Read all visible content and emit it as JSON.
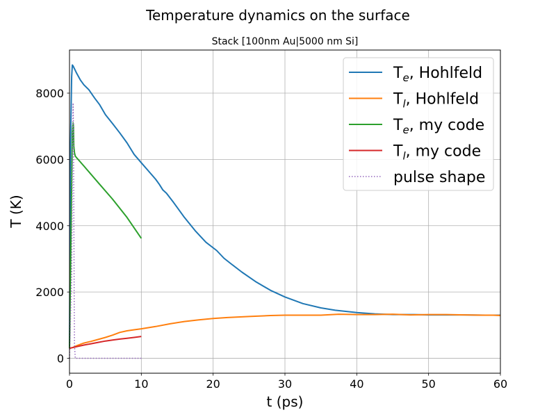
{
  "chart_data": {
    "type": "line",
    "title": "Temperature dynamics on the surface",
    "subtitle": "Stack [100nm Au|5000 nm Si]",
    "xlabel": "t (ps)",
    "ylabel": "T (K)",
    "xlim": [
      0,
      60
    ],
    "ylim": [
      -450,
      9300
    ],
    "xticks": [
      0,
      10,
      20,
      30,
      40,
      50,
      60
    ],
    "yticks": [
      0,
      2000,
      4000,
      6000,
      8000
    ],
    "grid": true,
    "legend_position": "top-right",
    "series": [
      {
        "name": "T_e, Hohlfeld",
        "label_main": "T",
        "label_sub": "e",
        "label_rest": ", Hohlfeld",
        "color": "#1f77b4",
        "style": "solid",
        "x": [
          0.0,
          0.15,
          0.3,
          0.4,
          0.5,
          1.0,
          1.5,
          2.0,
          2.7,
          3.5,
          4.2,
          5.0,
          6.0,
          7.0,
          8.0,
          9.0,
          10.0,
          11.0,
          12.0,
          12.5,
          13.0,
          13.5,
          14.5,
          16.0,
          17.5,
          19.0,
          20.5,
          21.5,
          22.5,
          24.0,
          26.0,
          28.0,
          30.0,
          32.5,
          35.0,
          37.0,
          40.0,
          42.5,
          45.0,
          48.0,
          50.0,
          52.0,
          55.0,
          58.0,
          60.0
        ],
        "y": [
          300,
          6500,
          8500,
          8850,
          8820,
          8600,
          8400,
          8250,
          8100,
          7850,
          7650,
          7350,
          7080,
          6800,
          6500,
          6150,
          5900,
          5650,
          5400,
          5250,
          5080,
          4980,
          4700,
          4250,
          3850,
          3500,
          3250,
          3020,
          2850,
          2600,
          2300,
          2050,
          1850,
          1650,
          1520,
          1450,
          1380,
          1340,
          1320,
          1320,
          1310,
          1310,
          1310,
          1300,
          1300
        ]
      },
      {
        "name": "T_l, Hohlfeld",
        "label_main": "T",
        "label_sub": "l",
        "label_rest": ", Hohlfeld",
        "color": "#ff7f0e",
        "style": "solid",
        "x": [
          0.0,
          0.5,
          1.0,
          2.0,
          3.0,
          4.0,
          5.0,
          6.0,
          7.0,
          8.0,
          9.0,
          10.0,
          12.0,
          14.0,
          16.0,
          18.0,
          20.0,
          22.0,
          25.0,
          28.0,
          30.0,
          32.0,
          35.0,
          37.5,
          40.0,
          42.5,
          45.0,
          47.5,
          50.0,
          52.5,
          55.0,
          57.5,
          59.0,
          60.0
        ],
        "y": [
          300,
          330,
          380,
          460,
          510,
          570,
          630,
          700,
          780,
          830,
          860,
          890,
          960,
          1040,
          1110,
          1160,
          1200,
          1230,
          1260,
          1290,
          1300,
          1300,
          1300,
          1330,
          1320,
          1320,
          1330,
          1310,
          1320,
          1320,
          1310,
          1300,
          1300,
          1290
        ]
      },
      {
        "name": "T_e, my code",
        "label_main": "T",
        "label_sub": "e",
        "label_rest": ", my code",
        "color": "#2ca02c",
        "style": "solid",
        "x": [
          0.0,
          0.3,
          0.4,
          0.45,
          0.5,
          0.55,
          0.6,
          0.7,
          0.8,
          1.0,
          2.0,
          4.0,
          6.0,
          8.0,
          10.0
        ],
        "y": [
          300,
          5200,
          6800,
          7000,
          7100,
          7000,
          6400,
          6200,
          6100,
          6050,
          5800,
          5300,
          4800,
          4250,
          3620
        ]
      },
      {
        "name": "T_l, my code",
        "label_main": "T",
        "label_sub": "l",
        "label_rest": ", my code",
        "color": "#d62728",
        "style": "solid",
        "x": [
          0.0,
          1.0,
          2.0,
          3.0,
          4.0,
          5.0,
          6.0,
          7.0,
          8.0,
          9.0,
          10.0
        ],
        "y": [
          300,
          350,
          400,
          440,
          480,
          520,
          550,
          580,
          605,
          630,
          660
        ]
      },
      {
        "name": "pulse shape",
        "label_main": "pulse shape",
        "label_sub": "",
        "label_rest": "",
        "color": "#9467bd",
        "style": "dotted",
        "x": [
          0.0,
          0.3,
          0.4,
          0.45,
          0.5,
          0.55,
          0.6,
          0.65,
          0.7,
          0.8,
          1.0,
          3.0,
          6.0,
          10.0
        ],
        "y": [
          0,
          2500,
          5500,
          7000,
          7700,
          7000,
          4500,
          2000,
          400,
          0,
          0,
          0,
          0,
          0
        ]
      }
    ]
  }
}
